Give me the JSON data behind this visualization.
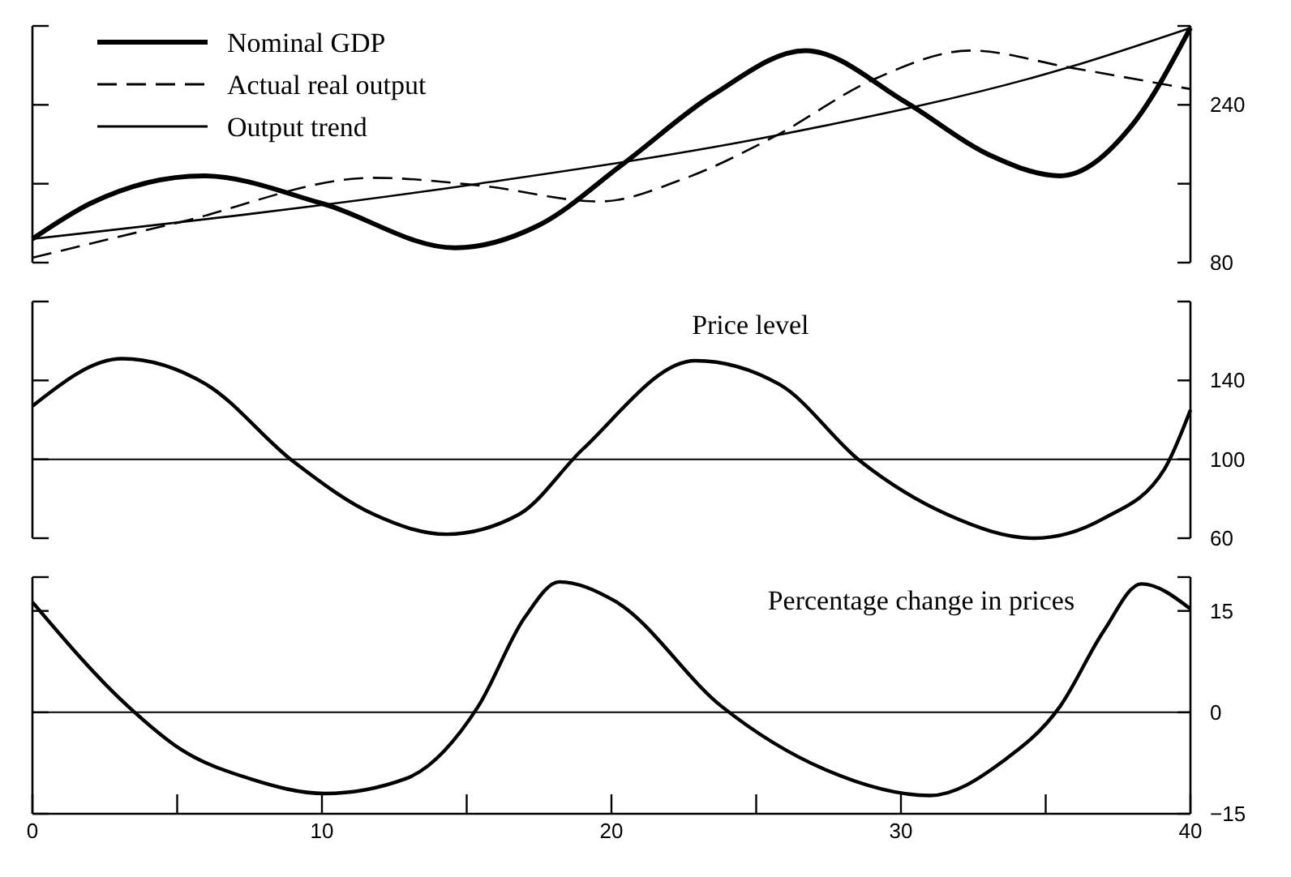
{
  "chart_data": [
    {
      "type": "line",
      "xlim": [
        0,
        40
      ],
      "ylim": [
        80,
        320
      ],
      "yticks": [
        80,
        {
          "value": 160,
          "label": null
        },
        240,
        {
          "value": 320,
          "label": null
        }
      ],
      "tick_labels": "y",
      "legend": "top left",
      "series": [
        {
          "name": "Nominal GDP",
          "color": "#000000",
          "line_style": "solid",
          "x": [
            0,
            2,
            5.9,
            10,
            14.6,
            17.5,
            20.4,
            23.5,
            26.7,
            30.2,
            33,
            35.5,
            38,
            40
          ],
          "values": [
            104,
            140,
            168,
            140,
            95,
            118,
            180,
            250,
            295,
            242,
            190,
            168,
            220,
            318
          ]
        },
        {
          "name": "Actual real output",
          "color": "#000000",
          "line_style": "dashed",
          "x": [
            0,
            5.1,
            11.8,
            15.5,
            19.6,
            22.5,
            25.7,
            29,
            32.4,
            35.8,
            40
          ],
          "values": [
            85,
            121,
            166,
            158,
            142,
            165,
            209,
            265,
            295,
            278,
            256
          ]
        },
        {
          "name": "Output trend",
          "color": "#000000",
          "line_style": "solid",
          "x": [
            0,
            15.4,
            25.7,
            35.8,
            40
          ],
          "values": [
            104,
            160,
            209,
            278,
            318
          ]
        }
      ]
    },
    {
      "type": "line",
      "title": "Price level",
      "xlim": [
        0,
        40
      ],
      "ylim": [
        60,
        180
      ],
      "yticks": [
        60,
        100,
        140,
        {
          "value": 180,
          "label": null
        }
      ],
      "tick_labels": "y",
      "ref_lines": [
        {
          "axis": "y",
          "value": 100
        }
      ],
      "series": [
        {
          "color": "#000000",
          "x": [
            0,
            3.1,
            6,
            9,
            11.8,
            14.3,
            16.8,
            19,
            22.9,
            25.8,
            28.6,
            31.6,
            34.6,
            37,
            39.1,
            40
          ],
          "values": [
            127,
            151,
            138,
            99,
            72,
            62,
            72,
            105,
            150,
            138,
            99,
            72,
            60,
            70,
            95,
            125
          ]
        }
      ]
    },
    {
      "type": "line",
      "title": "Percentage change in prices",
      "xlim": [
        0,
        40
      ],
      "xticks": [
        0,
        {
          "value": 5,
          "label": null
        },
        10,
        {
          "value": 15,
          "label": null
        },
        20,
        {
          "value": 25,
          "label": null
        },
        30,
        {
          "value": 35,
          "label": null
        },
        40
      ],
      "ylim": [
        -15,
        20
      ],
      "yticks": [
        {
          "value": -15,
          "label": "−15"
        },
        0,
        15,
        {
          "value": 20,
          "label": null
        }
      ],
      "ref_lines": [
        {
          "axis": "y",
          "value": 0
        }
      ],
      "series": [
        {
          "color": "#000000",
          "x": [
            0,
            3.3,
            5.1,
            7.5,
            10.1,
            12.9,
            15.4,
            17,
            18.2,
            20.1,
            23.8,
            27.4,
            31,
            33.5,
            35.5,
            37,
            38.3,
            40
          ],
          "values": [
            16.3,
            0.9,
            -5.4,
            -9.8,
            -12,
            -9.8,
            0.9,
            14,
            19.3,
            16.5,
            0.9,
            -8.5,
            -12.3,
            -7.3,
            0.9,
            12,
            19,
            15.3
          ]
        }
      ]
    }
  ]
}
